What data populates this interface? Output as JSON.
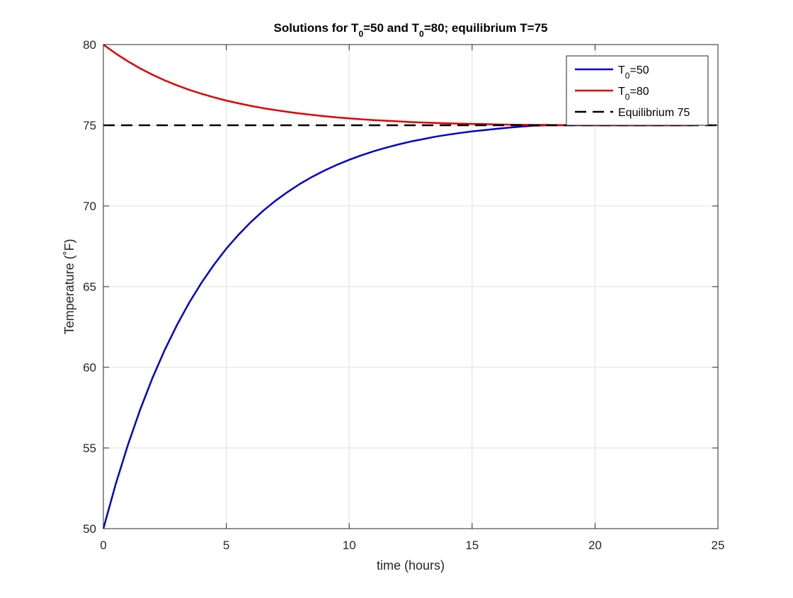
{
  "chart_data": {
    "type": "line",
    "title": {
      "parts": [
        {
          "text": "Solutions for T"
        },
        {
          "text": "0",
          "sub": true
        },
        {
          "text": "=50 and T"
        },
        {
          "text": "0",
          "sub": true
        },
        {
          "text": "=80; equilibrium T=75"
        }
      ]
    },
    "xlabel": "time (hours)",
    "ylabel": "Temperature (˚F)",
    "xlim": [
      0,
      25
    ],
    "ylim": [
      50,
      80
    ],
    "xticks": [
      0,
      5,
      10,
      15,
      20,
      25
    ],
    "yticks": [
      50,
      55,
      60,
      65,
      70,
      75,
      80
    ],
    "grid": true,
    "legend_position": "top-right",
    "x": [
      0,
      0.5,
      1,
      1.5,
      2,
      2.5,
      3,
      3.5,
      4,
      4.5,
      5,
      5.5,
      6,
      6.5,
      7,
      7.5,
      8,
      8.5,
      9,
      9.5,
      10,
      10.5,
      11,
      11.5,
      12,
      12.5,
      13,
      13.5,
      14,
      14.5,
      15,
      15.5,
      16,
      16.5,
      17,
      17.5,
      18,
      18.5,
      19,
      19.5,
      20,
      20.5,
      21,
      21.5,
      22,
      22.5,
      23,
      23.5,
      24
    ],
    "series": [
      {
        "legend_parts": [
          {
            "text": "T"
          },
          {
            "text": "0",
            "sub": true
          },
          {
            "text": "=50"
          }
        ],
        "color": "#0000cc",
        "dash": "solid",
        "values": [
          50.0,
          52.75,
          55.2,
          57.39,
          59.35,
          61.09,
          62.64,
          64.03,
          65.26,
          66.36,
          67.35,
          68.22,
          69.0,
          69.7,
          70.32,
          70.87,
          71.37,
          71.81,
          72.2,
          72.55,
          72.86,
          73.14,
          73.39,
          73.61,
          73.81,
          73.99,
          74.14,
          74.29,
          74.41,
          74.52,
          74.62,
          74.7,
          74.78,
          74.85,
          74.92,
          74.97,
          75.0,
          75.0,
          75.0,
          75.0,
          75.0,
          75.0,
          75.0,
          75.0,
          75.0,
          75.0,
          75.0,
          75.0,
          75.0
        ]
      },
      {
        "legend_parts": [
          {
            "text": "T"
          },
          {
            "text": "0",
            "sub": true
          },
          {
            "text": "=80"
          }
        ],
        "color": "#e00000",
        "dash": "solid",
        "values": [
          80.0,
          79.45,
          78.96,
          78.52,
          78.13,
          77.78,
          77.47,
          77.19,
          76.95,
          76.73,
          76.53,
          76.36,
          76.2,
          76.06,
          75.94,
          75.83,
          75.73,
          75.64,
          75.56,
          75.49,
          75.43,
          75.37,
          75.32,
          75.28,
          75.24,
          75.2,
          75.17,
          75.14,
          75.12,
          75.1,
          75.08,
          75.07,
          75.05,
          75.04,
          75.03,
          75.02,
          75.02,
          75.01,
          75.01,
          75.01,
          75.0,
          75.0,
          75.0,
          75.0,
          75.0,
          75.0,
          75.0,
          75.0,
          75.0
        ]
      },
      {
        "legend_parts": [
          {
            "text": "Equilibrium 75"
          }
        ],
        "color": "#000000",
        "dash": "dashed",
        "constant": 75,
        "x_range": [
          0,
          25
        ]
      }
    ]
  }
}
